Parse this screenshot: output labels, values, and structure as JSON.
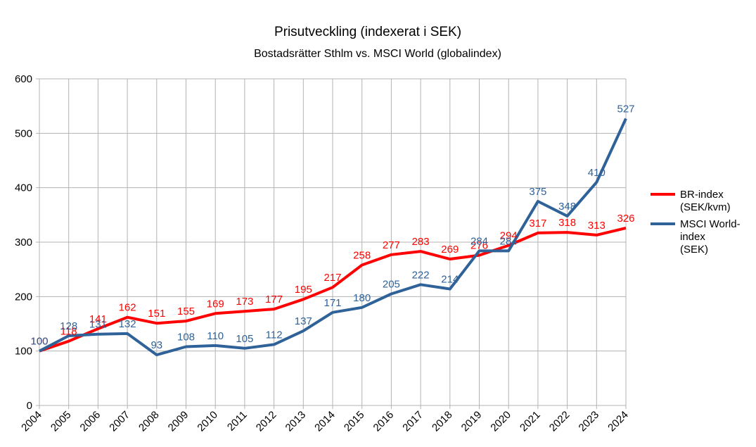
{
  "chart_data": {
    "type": "line",
    "title": "Prisutveckling (indexerat i SEK)",
    "subtitle": "Bostadsrätter Sthlm vs. MSCI World (globalindex)",
    "xlabel": "",
    "ylabel": "",
    "x": [
      "2004",
      "2005",
      "2006",
      "2007",
      "2008",
      "2009",
      "2010",
      "2011",
      "2012",
      "2013",
      "2014",
      "2015",
      "2016",
      "2017",
      "2018",
      "2019",
      "2020",
      "2021",
      "2022",
      "2023",
      "2024"
    ],
    "ylim": [
      0,
      600
    ],
    "yticks": [
      0,
      100,
      200,
      300,
      400,
      500,
      600
    ],
    "grid": true,
    "legend_position": "right",
    "series": [
      {
        "name": "BR-index (SEK/kvm)",
        "legend_lines": [
          "BR-index",
          "(SEK/kvm)"
        ],
        "color": "#ff0000",
        "values": [
          100,
          118,
          141,
          162,
          151,
          155,
          169,
          173,
          177,
          195,
          217,
          258,
          277,
          283,
          269,
          276,
          294,
          317,
          318,
          313,
          326
        ]
      },
      {
        "name": "MSCI World-index (SEK)",
        "legend_lines": [
          "MSCI World-",
          "index",
          "(SEK)"
        ],
        "color": "#2f6299",
        "values": [
          100,
          128,
          131,
          132,
          93,
          108,
          110,
          105,
          112,
          137,
          171,
          180,
          205,
          222,
          214,
          284,
          284,
          375,
          348,
          410,
          527
        ]
      }
    ]
  }
}
